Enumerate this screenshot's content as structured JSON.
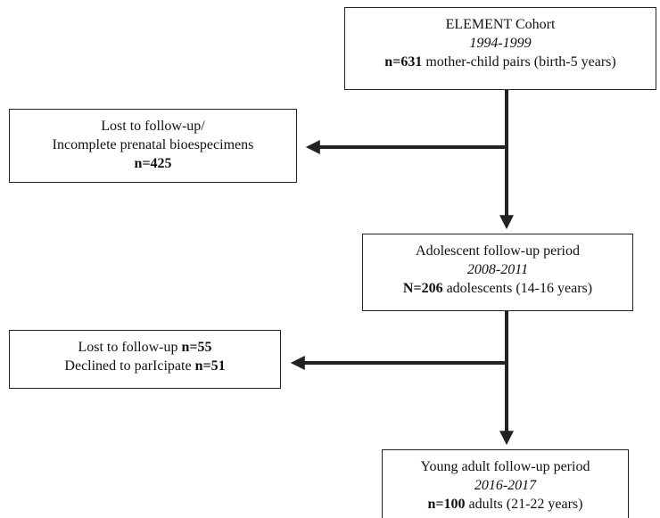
{
  "nodes": [
    {
      "title": "ELEMENT Cohort",
      "period": "1994-1999",
      "count": "n=631",
      "description": "mother-child pairs (birth-5 years)"
    },
    {
      "title": "Adolescent follow-up period",
      "period": "2008-2011",
      "count": "N=206",
      "description": "adolescents (14-16 years)"
    },
    {
      "title": "Young adult follow-up period",
      "period": "2016-2017",
      "count": "n=100",
      "description": "adults (21-22 years)"
    }
  ],
  "exits": [
    {
      "lines": [
        "Lost to follow-up/",
        "Incomplete prenatal bioespecimens"
      ],
      "count": "n=425"
    },
    {
      "items": [
        {
          "label": "Lost to follow-up",
          "count": "n=55"
        },
        {
          "label": "Declined to parIcipate",
          "count": "n=51"
        }
      ]
    }
  ]
}
